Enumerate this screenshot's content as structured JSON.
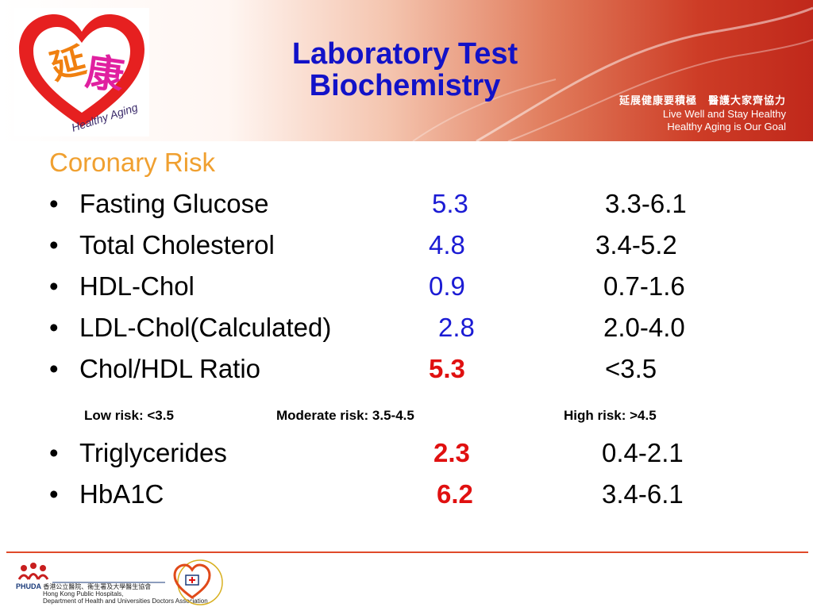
{
  "header": {
    "title_line1": "Laboratory Test",
    "title_line2": "Biochemistry",
    "slogan_zh": "延展健康要積極　醫護大家齊協力",
    "slogan_en1": "Live Well and Stay Healthy",
    "slogan_en2": "Healthy Aging is Our Goal",
    "logo_caption": "Healthy Aging",
    "logo_chars": [
      "延",
      "康"
    ]
  },
  "section_title": "Coronary Risk",
  "bullet": "•",
  "tests": [
    {
      "name": "Fasting Glucose",
      "value": "5.3",
      "range": "3.3-6.1",
      "status": "normal"
    },
    {
      "name": "Total Cholesterol",
      "value": "4.8",
      "range": "3.4-5.2",
      "status": "normal"
    },
    {
      "name": "HDL-Chol",
      "value": "0.9",
      "range": "0.7-1.6",
      "status": "normal"
    },
    {
      "name": "LDL-Chol(Calculated)",
      "value": "2.8",
      "range": "2.0-4.0",
      "status": "normal"
    },
    {
      "name": "Chol/HDL Ratio",
      "value": "5.3",
      "range": "<3.5",
      "status": "abnormal"
    },
    {
      "name": "Triglycerides",
      "value": "2.3",
      "range": "0.4-2.1",
      "status": "abnormal"
    },
    {
      "name": "HbA1C",
      "value": "6.2",
      "range": "3.4-6.1",
      "status": "abnormal"
    }
  ],
  "risk_levels": {
    "low": "Low risk:  <3.5",
    "moderate": "Moderate risk: 3.5-4.5",
    "high": "High risk: >4.5"
  },
  "footer": {
    "phuda": "PHUDA",
    "phuda_zh": "香港公立醫院、衞生署及大學醫生協會",
    "phuda_en1": "Hong Kong Public Hospitals,",
    "phuda_en2": "Department of Health and Universities Doctors Association"
  },
  "colors": {
    "title": "#1212c8",
    "section": "#f0a030",
    "normal_value": "#1b1bd4",
    "abnormal_value": "#e01010",
    "divider": "#e04a2a"
  }
}
